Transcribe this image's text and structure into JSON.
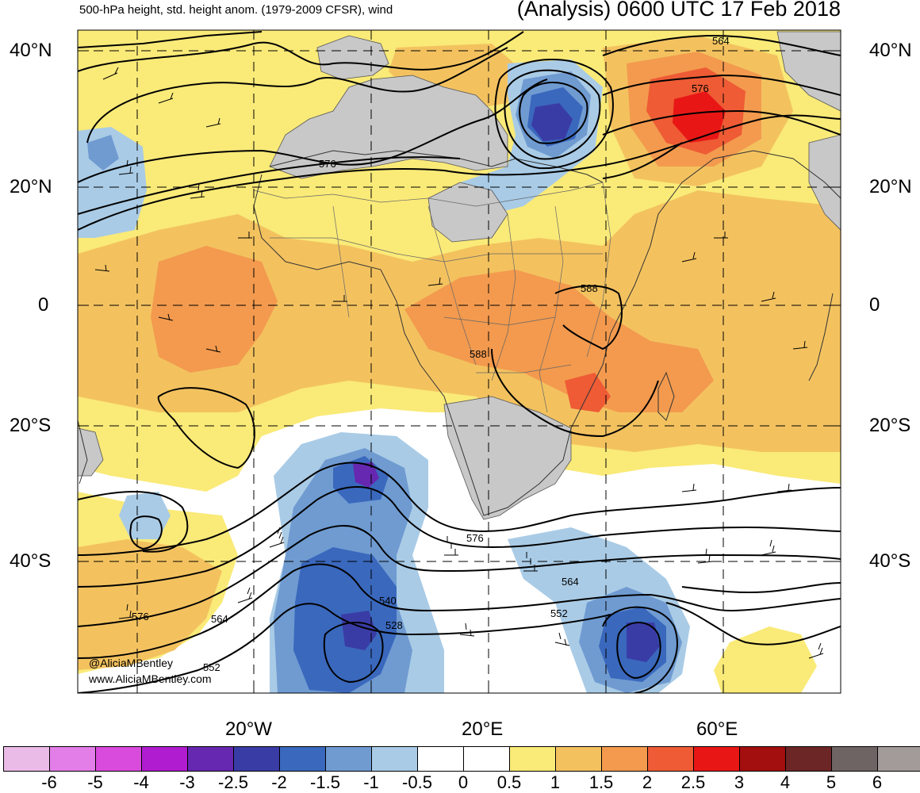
{
  "header": {
    "left_title": "500-hPa height, std. height anom. (1979-2009 CFSR), wind",
    "right_title": "(Analysis) 0600 UTC 17 Feb 2018"
  },
  "latitude_labels": [
    "40°N",
    "20°N",
    "0",
    "20°S",
    "40°S"
  ],
  "longitude_labels": [
    "20°W",
    "20°E",
    "60°E"
  ],
  "contour_labels": [
    "564",
    "576",
    "588",
    "588",
    "576",
    "576",
    "564",
    "552",
    "540",
    "528",
    "576",
    "564",
    "552"
  ],
  "credit": {
    "twitter": "@AliciaMBentley",
    "website": "www.AliciaMBentley.com"
  },
  "colorbar": {
    "labels": [
      "-6",
      "-5",
      "-4",
      "-3",
      "-2.5",
      "-2",
      "-1.5",
      "-1",
      "-0.5",
      "0",
      "0.5",
      "1",
      "1.5",
      "2",
      "2.5",
      "3",
      "4",
      "5",
      "6"
    ],
    "colors": [
      "#ebbbe8",
      "#e37de8",
      "#d94bdc",
      "#b01ccf",
      "#6628b0",
      "#3a3ca6",
      "#3a68bd",
      "#6f9bd1",
      "#a9cbe6",
      "#ffffff",
      "#ffffff",
      "#faea78",
      "#f3c25f",
      "#f39a4e",
      "#ee5b35",
      "#e81716",
      "#a30e0e",
      "#6d2626",
      "#6f6464",
      "#a39a9a"
    ]
  },
  "map_colors": {
    "land": "#c8c8c8",
    "anom_0_5": "#faea78",
    "anom_1": "#f3c25f",
    "anom_1_5": "#f39a4e",
    "anom_2": "#ee5b35",
    "anom_2_5": "#e81716",
    "anom_neg_0_5": "#a9cbe6",
    "anom_neg_1": "#6f9bd1",
    "anom_neg_1_5": "#3a68bd",
    "anom_neg_2": "#3a3ca6",
    "anom_neg_2_5": "#6628b0"
  }
}
